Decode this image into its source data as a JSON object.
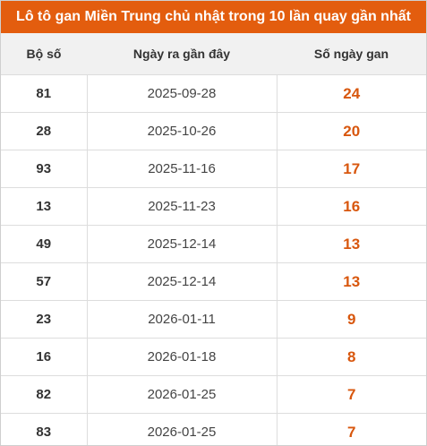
{
  "title": "Lô tô gan Miền Trung chủ nhật trong 10 lần quay gần nhất",
  "accent_color": "#e35d0e",
  "value_color": "#d8570e",
  "table": {
    "headers": [
      "Bộ số",
      "Ngày ra gần đây",
      "Số ngày gan"
    ],
    "rows": [
      {
        "so": "81",
        "ngay": "2025-09-28",
        "gan": "24"
      },
      {
        "so": "28",
        "ngay": "2025-10-26",
        "gan": "20"
      },
      {
        "so": "93",
        "ngay": "2025-11-16",
        "gan": "17"
      },
      {
        "so": "13",
        "ngay": "2025-11-23",
        "gan": "16"
      },
      {
        "so": "49",
        "ngay": "2025-12-14",
        "gan": "13"
      },
      {
        "so": "57",
        "ngay": "2025-12-14",
        "gan": "13"
      },
      {
        "so": "23",
        "ngay": "2026-01-11",
        "gan": "9"
      },
      {
        "so": "16",
        "ngay": "2026-01-18",
        "gan": "8"
      },
      {
        "so": "82",
        "ngay": "2026-01-25",
        "gan": "7"
      },
      {
        "so": "83",
        "ngay": "2026-01-25",
        "gan": "7"
      }
    ]
  }
}
